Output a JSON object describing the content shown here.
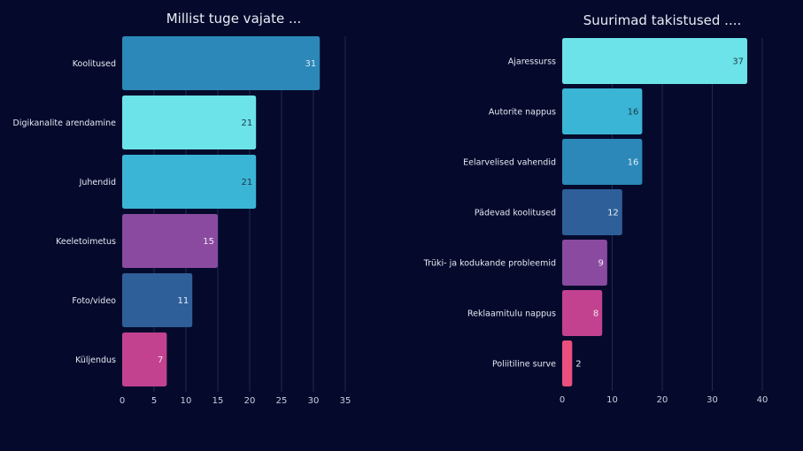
{
  "chart_data": [
    {
      "type": "bar",
      "orientation": "horizontal",
      "title": "Millist tuge vajate ...",
      "categories": [
        "Koolitused",
        "Digikanalite arendamine",
        "Juhendid",
        "Keeletoimetus",
        "Foto/video",
        "Küljendus"
      ],
      "values": [
        31,
        21,
        21,
        15,
        11,
        7
      ],
      "colors": [
        "#2b88b8",
        "#6ce3e8",
        "#3bb5d6",
        "#8a4aa0",
        "#2e5f99",
        "#c2428f"
      ],
      "label_colors": [
        "#dbe9f5",
        "#1e3a4a",
        "#1e3a4a",
        "#f0e6f5",
        "#e6eef8",
        "#f5e0ee"
      ],
      "xticks": [
        0,
        5,
        10,
        15,
        20,
        25,
        30,
        35
      ],
      "xlim": [
        0,
        35
      ],
      "xlabel": "",
      "ylabel": "",
      "grid": true,
      "legend": "none"
    },
    {
      "type": "bar",
      "orientation": "horizontal",
      "title": "Suurimad takistused ....",
      "categories": [
        "Ajaressurss",
        "Autorite nappus",
        "Eelarvelised vahendid",
        "Pädevad koolitused",
        "Trüki- ja kodukande probleemid",
        "Reklaamitulu nappus",
        "Poliitiline surve"
      ],
      "values": [
        37,
        16,
        16,
        12,
        9,
        8,
        2
      ],
      "colors": [
        "#6ce3e8",
        "#3bb5d6",
        "#2b88b8",
        "#2e5f99",
        "#8a4aa0",
        "#c2428f",
        "#ea4f7d"
      ],
      "label_colors": [
        "#1e3a4a",
        "#1e3a4a",
        "#e6eef8",
        "#e6eef8",
        "#f0e6f5",
        "#f5e0ee",
        "#e4e8f2"
      ],
      "xticks": [
        0,
        10,
        20,
        30,
        40
      ],
      "xlim": [
        0,
        40
      ],
      "xlabel": "",
      "ylabel": "",
      "grid": true,
      "legend": "none"
    }
  ]
}
